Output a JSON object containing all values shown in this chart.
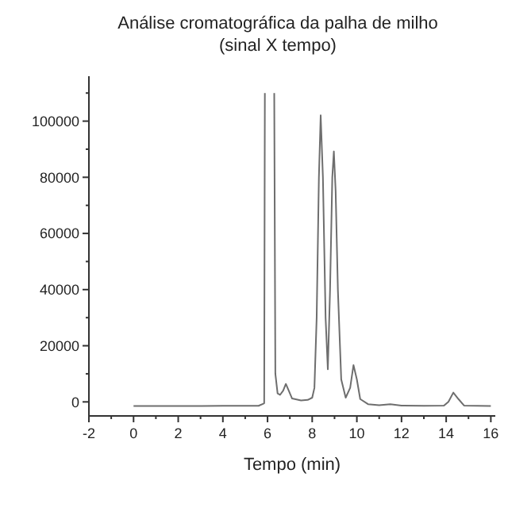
{
  "chart_data": {
    "type": "line",
    "title": "Análise cromatográfica da palha de milho",
    "subtitle": "(sinal X tempo)",
    "xlabel": "Tempo (min)",
    "xlim": [
      -2,
      16.2
    ],
    "ylim": [
      -5000,
      116000
    ],
    "xticks": [
      -2,
      {
        "value": -1,
        "label": null
      },
      0,
      {
        "value": 1,
        "label": null
      },
      2,
      {
        "value": 3,
        "label": null
      },
      4,
      {
        "value": 5,
        "label": null
      },
      6,
      {
        "value": 7,
        "label": null
      },
      8,
      {
        "value": 9,
        "label": null
      },
      10,
      {
        "value": 11,
        "label": null
      },
      12,
      {
        "value": 13,
        "label": null
      },
      14,
      {
        "value": 15,
        "label": null
      },
      16
    ],
    "yticks": [
      0,
      {
        "value": 10000,
        "label": null
      },
      20000,
      {
        "value": 30000,
        "label": null
      },
      40000,
      {
        "value": 50000,
        "label": null
      },
      60000,
      {
        "value": 70000,
        "label": null
      },
      80000,
      {
        "value": 90000,
        "label": null
      },
      100000,
      {
        "value": 110000,
        "label": null
      }
    ],
    "grid": false,
    "marker": "none",
    "line_style": "solid",
    "series": [
      {
        "color": "#6e6e6e",
        "x": [
          0,
          2,
          4,
          5.6,
          5.85,
          5.88,
          5.9,
          6.28,
          6.3,
          6.35,
          6.45,
          6.56,
          6.7,
          6.82,
          6.95,
          7.1,
          7.5,
          7.8,
          8.0,
          8.1,
          8.2,
          8.3,
          8.38,
          8.48,
          8.6,
          8.7,
          8.8,
          8.9,
          8.97,
          9.05,
          9.15,
          9.3,
          9.5,
          9.7,
          9.85,
          10.0,
          10.15,
          10.5,
          11,
          11.5,
          12,
          13,
          13.9,
          14.1,
          14.32,
          14.55,
          14.8,
          16
        ],
        "values": [
          -1500,
          -1500,
          -1400,
          -1400,
          -500,
          110000,
          null,
          null,
          110000,
          10000,
          3000,
          2500,
          4000,
          6400,
          4000,
          1200,
          500,
          700,
          1500,
          5000,
          30000,
          80000,
          102100,
          80000,
          30000,
          11600,
          40000,
          80000,
          89200,
          75000,
          40000,
          8000,
          1500,
          5000,
          13100,
          8000,
          1000,
          -800,
          -1200,
          -800,
          -1300,
          -1400,
          -1300,
          0,
          3300,
          1000,
          -1300,
          -1500
        ]
      }
    ]
  }
}
